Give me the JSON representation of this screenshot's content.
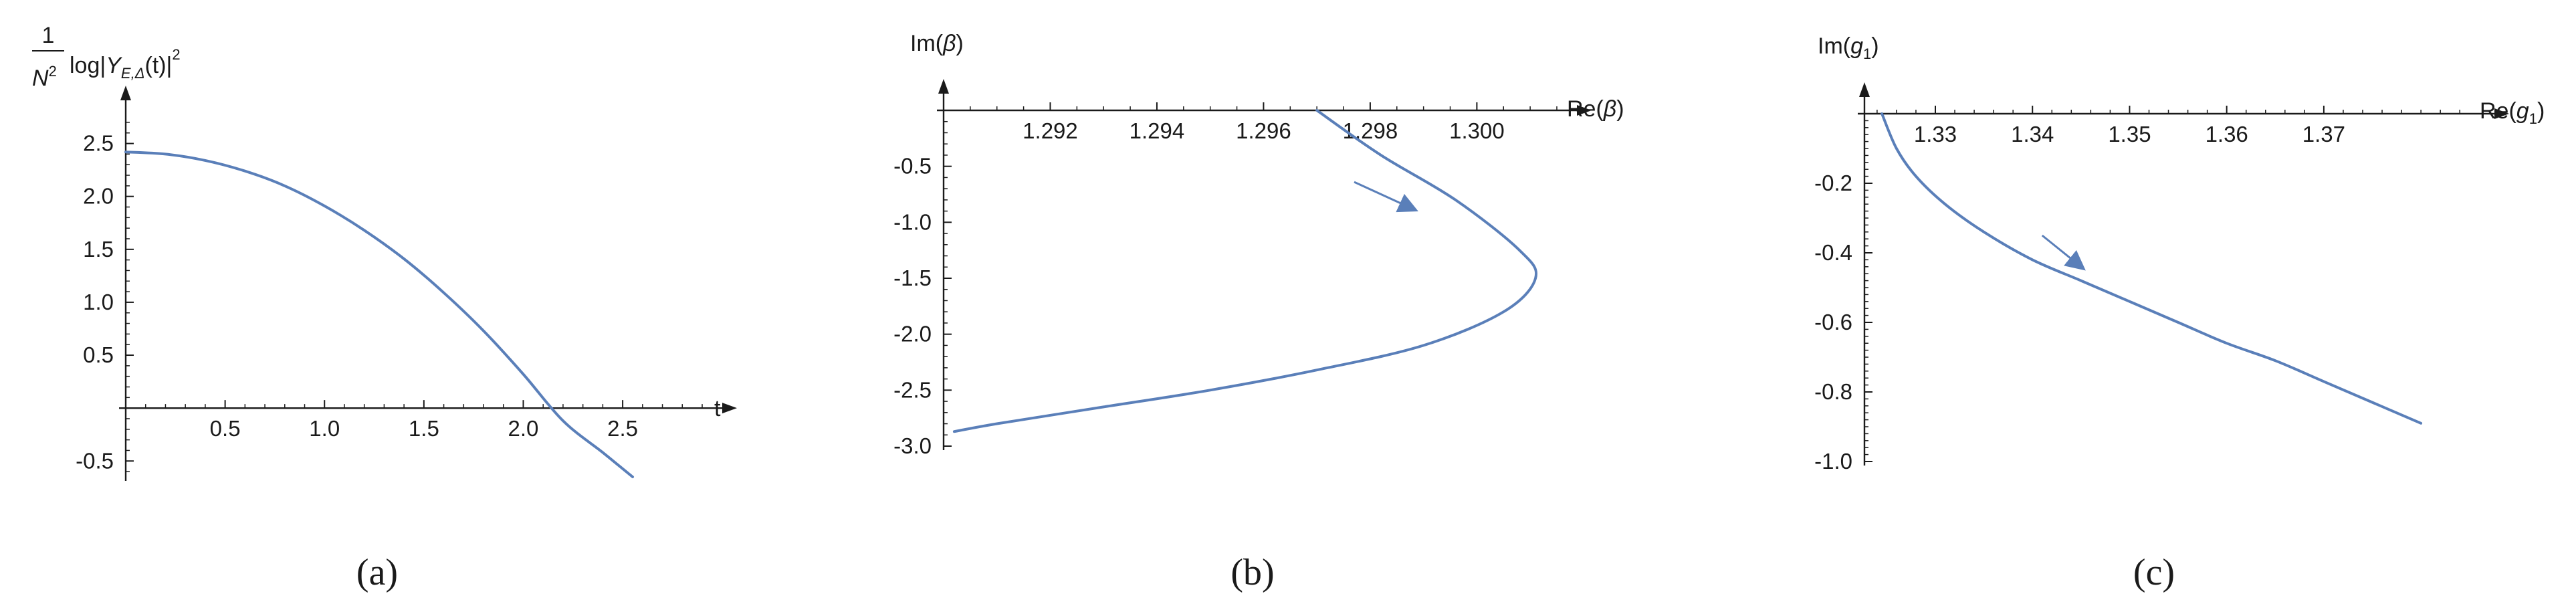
{
  "colors": {
    "series": "#5a7fb9",
    "axis": "#1a1a1a"
  },
  "chart_data": [
    {
      "id": "a",
      "type": "line",
      "caption": "(a)",
      "xlabel": "t",
      "ylabel": "1/N² log|Y_{E,Δ}(t)|²",
      "xlim": [
        0,
        2.9
      ],
      "ylim": [
        -0.65,
        2.75
      ],
      "xticks": [
        "0.5",
        "1.0",
        "1.5",
        "2.0",
        "2.5"
      ],
      "yticks": [
        "-0.5",
        "0.5",
        "1.0",
        "1.5",
        "2.0",
        "2.5"
      ],
      "series": [
        {
          "x": [
            0,
            0.2,
            0.4,
            0.6,
            0.8,
            1.0,
            1.2,
            1.4,
            1.6,
            1.8,
            2.0,
            2.2,
            2.4,
            2.55
          ],
          "y": [
            2.42,
            2.4,
            2.34,
            2.24,
            2.1,
            1.91,
            1.68,
            1.41,
            1.09,
            0.73,
            0.32,
            -0.12,
            -0.42,
            -0.65
          ]
        }
      ],
      "arrow": null
    },
    {
      "id": "b",
      "type": "line",
      "caption": "(b)",
      "xlabel": "Re(β)",
      "ylabel": "Im(β)",
      "xlim": [
        1.29,
        1.3015
      ],
      "ylim": [
        -3.0,
        0.0
      ],
      "xticks": [
        "1.292",
        "1.294",
        "1.296",
        "1.298",
        "1.300"
      ],
      "yticks": [
        "-0.5",
        "-1.0",
        "-1.5",
        "-2.0",
        "-2.5",
        "-3.0"
      ],
      "series": [
        {
          "x": [
            1.297,
            1.2982,
            1.2996,
            1.3008,
            1.3011,
            1.3005,
            1.299,
            1.297,
            1.295,
            1.293,
            1.291,
            1.2902
          ],
          "y": [
            0.0,
            -0.4,
            -0.8,
            -1.25,
            -1.5,
            -1.8,
            -2.1,
            -2.32,
            -2.5,
            -2.65,
            -2.8,
            -2.87
          ]
        }
      ],
      "arrow": {
        "from": [
          1.2977,
          -0.64
        ],
        "to": [
          1.2988,
          -0.88
        ]
      }
    },
    {
      "id": "c",
      "type": "line",
      "caption": "(c)",
      "xlabel": "Re(g₁)",
      "ylabel": "Im(g₁)",
      "xlim": [
        1.3227,
        1.3855
      ],
      "ylim": [
        -1.0,
        0.0
      ],
      "xticks": [
        "1.33",
        "1.34",
        "1.35",
        "1.36",
        "1.37"
      ],
      "yticks": [
        "-0.2",
        "-0.4",
        "-0.6",
        "-0.8",
        "-1.0"
      ],
      "series": [
        {
          "x": [
            1.3245,
            1.326,
            1.328,
            1.331,
            1.335,
            1.34,
            1.345,
            1.35,
            1.355,
            1.36,
            1.365,
            1.37,
            1.375,
            1.38
          ],
          "y": [
            0.0,
            -0.1,
            -0.18,
            -0.26,
            -0.34,
            -0.42,
            -0.48,
            -0.54,
            -0.6,
            -0.66,
            -0.71,
            -0.77,
            -0.83,
            -0.89
          ]
        }
      ],
      "arrow": {
        "from": [
          1.341,
          -0.35
        ],
        "to": [
          1.345,
          -0.44
        ]
      }
    }
  ]
}
